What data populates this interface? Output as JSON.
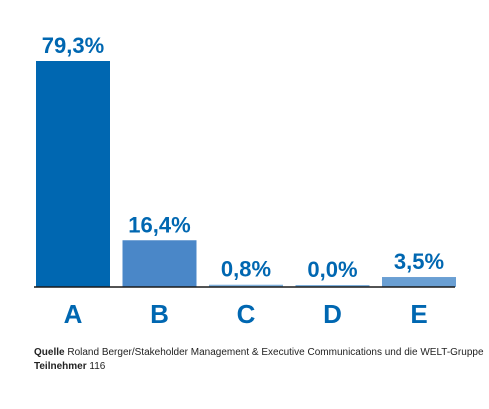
{
  "chart_data": {
    "type": "bar",
    "categories": [
      "A",
      "B",
      "C",
      "D",
      "E"
    ],
    "values": [
      79.3,
      16.4,
      0.8,
      0.0,
      3.5
    ],
    "value_labels": [
      "79,3%",
      "16,4%",
      "0,8%",
      "0,0%",
      "3,5%"
    ],
    "ylim": [
      0,
      80
    ],
    "grid": false,
    "title": "",
    "xlabel": "",
    "ylabel": ""
  },
  "colors": {
    "bars": [
      "#0067b1",
      "#4a87c8",
      "#7fb0dc",
      "#7fb0dc",
      "#6a9fd3"
    ],
    "labels": "#0067b1",
    "axis": "#1a1a1a"
  },
  "footer": {
    "source_label": "Quelle",
    "source_text": "Roland Berger/Stakeholder Management & Executive Communications  und die WELT-Gruppe",
    "participants_label": "Teilnehmer",
    "participants_value": "116"
  }
}
